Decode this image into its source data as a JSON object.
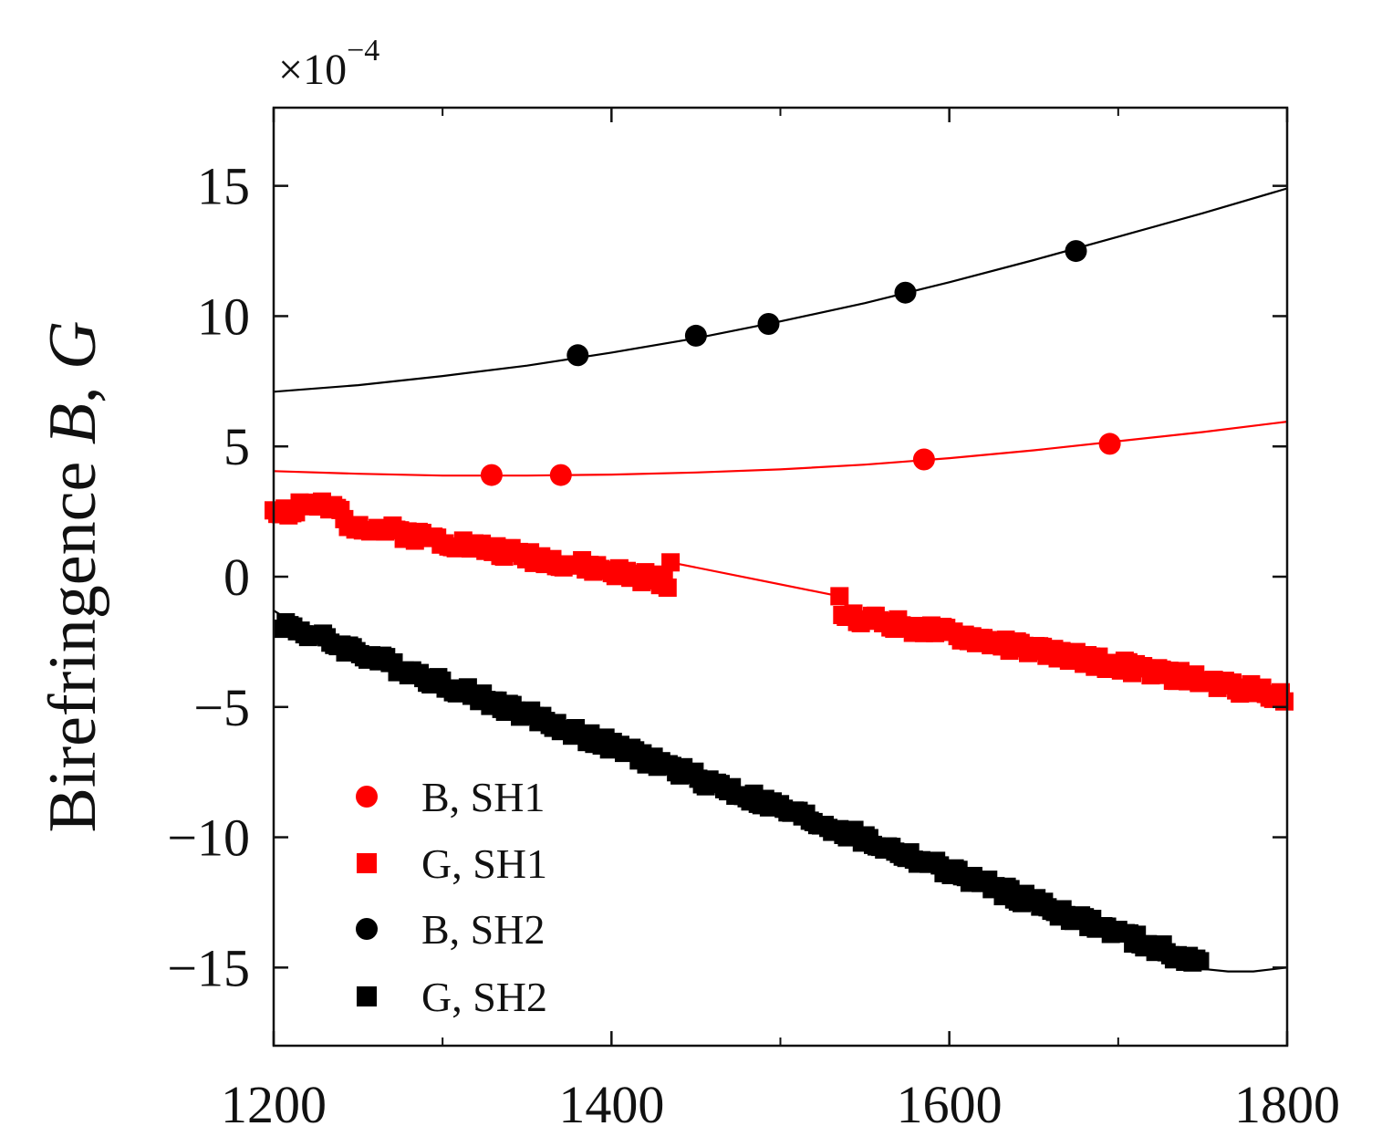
{
  "chart_data": {
    "type": "scatter",
    "xlabel": "",
    "ylabel": {
      "prefix": "Birefringence ",
      "var1": "B",
      "sep": ", ",
      "var2": "G"
    },
    "y_multiplier": {
      "base": "×10",
      "exponent": "−4"
    },
    "xlim": [
      1200,
      1800
    ],
    "ylim": [
      -18,
      18
    ],
    "x_ticks": [
      1200,
      1400,
      1600,
      1800
    ],
    "x_tick_labels": [
      "1200",
      "1400",
      "1600",
      "1800"
    ],
    "y_ticks": [
      15,
      10,
      5,
      0,
      -5,
      -10,
      -15
    ],
    "y_tick_labels": [
      "15",
      "10",
      "5",
      "0",
      "−5",
      "−10",
      "−15"
    ],
    "grid": false,
    "legend_position": "bottom-left",
    "series": [
      {
        "name": "B, SH1",
        "label": "B, SH1",
        "marker": "circle",
        "color": "#ff0000",
        "points": [
          [
            1329,
            3.9
          ],
          [
            1370,
            3.9
          ],
          [
            1585,
            4.5
          ],
          [
            1695,
            5.1
          ]
        ],
        "fit_line": [
          [
            1200,
            4.05
          ],
          [
            1250,
            3.95
          ],
          [
            1300,
            3.88
          ],
          [
            1350,
            3.88
          ],
          [
            1400,
            3.92
          ],
          [
            1450,
            4.0
          ],
          [
            1500,
            4.12
          ],
          [
            1550,
            4.3
          ],
          [
            1600,
            4.55
          ],
          [
            1650,
            4.85
          ],
          [
            1700,
            5.2
          ],
          [
            1750,
            5.55
          ],
          [
            1800,
            5.95
          ]
        ]
      },
      {
        "name": "G, SH1",
        "label": "G, SH1",
        "marker": "square",
        "color": "#ff0000",
        "x_range": [
          1200,
          1800
        ],
        "gap": [
          1435,
          1535
        ],
        "start_y": 2.6,
        "end_y": -4.6,
        "hump": [
          1215,
          1240,
          0.4
        ],
        "fit_line": [
          [
            1435,
            0.55
          ],
          [
            1535,
            -0.75
          ]
        ]
      },
      {
        "name": "B, SH2",
        "label": "B, SH2",
        "marker": "circle",
        "color": "#000000",
        "points": [
          [
            1380,
            8.5
          ],
          [
            1450,
            9.25
          ],
          [
            1493,
            9.7
          ],
          [
            1574,
            10.9
          ],
          [
            1675,
            12.5
          ]
        ],
        "fit_line": [
          [
            1200,
            7.1
          ],
          [
            1250,
            7.35
          ],
          [
            1300,
            7.7
          ],
          [
            1350,
            8.1
          ],
          [
            1400,
            8.6
          ],
          [
            1450,
            9.15
          ],
          [
            1500,
            9.8
          ],
          [
            1550,
            10.5
          ],
          [
            1600,
            11.3
          ],
          [
            1650,
            12.15
          ],
          [
            1700,
            13.05
          ],
          [
            1750,
            13.95
          ],
          [
            1800,
            14.9
          ]
        ]
      },
      {
        "name": "G, SH2",
        "label": "G, SH2",
        "marker": "square",
        "color": "#000000",
        "x_range": [
          1205,
          1750
        ],
        "start_y": -1.8,
        "end_y": -14.9,
        "fit_line": [
          [
            1200,
            -1.3
          ],
          [
            1210,
            -1.7
          ],
          [
            1750,
            -15.05
          ],
          [
            1765,
            -15.15
          ],
          [
            1780,
            -15.15
          ],
          [
            1800,
            -15.0
          ]
        ]
      }
    ]
  }
}
